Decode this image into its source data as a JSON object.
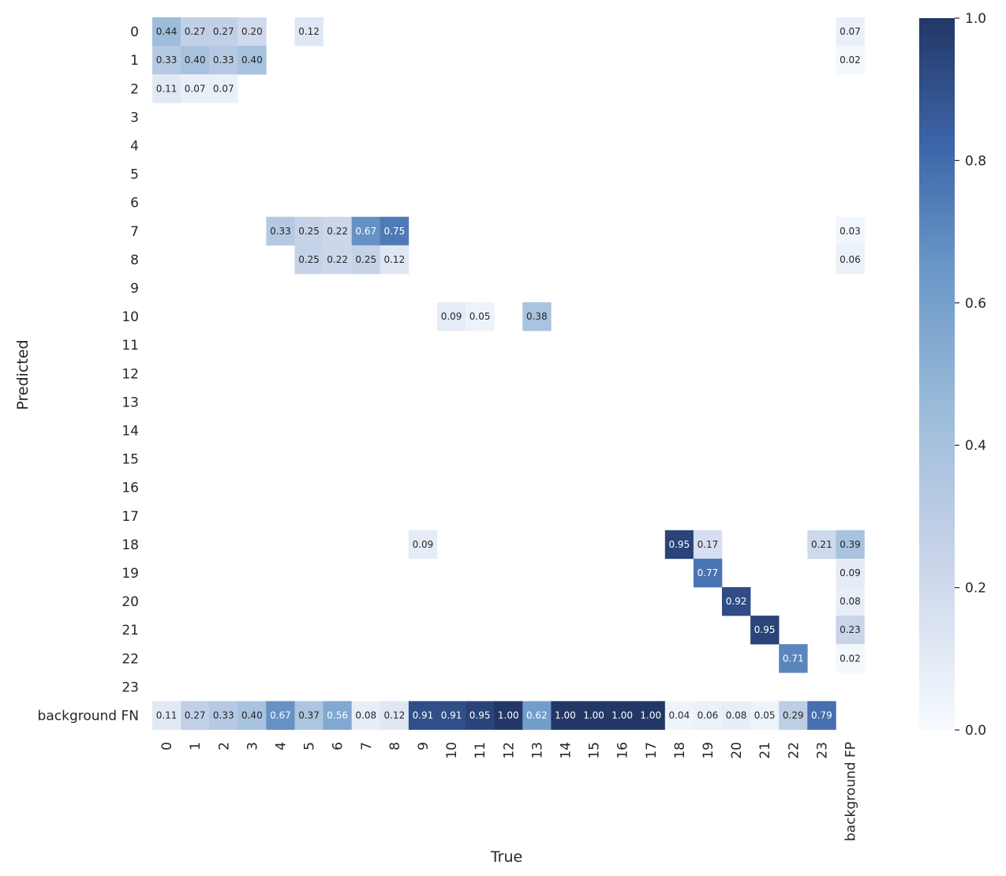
{
  "chart_data": {
    "type": "heatmap",
    "xlabel": "True",
    "ylabel": "Predicted",
    "x_categories": [
      "0",
      "1",
      "2",
      "3",
      "4",
      "5",
      "6",
      "7",
      "8",
      "9",
      "10",
      "11",
      "12",
      "13",
      "14",
      "15",
      "16",
      "17",
      "18",
      "19",
      "20",
      "21",
      "22",
      "23",
      "background FP"
    ],
    "y_categories": [
      "0",
      "1",
      "2",
      "3",
      "4",
      "5",
      "6",
      "7",
      "8",
      "9",
      "10",
      "11",
      "12",
      "13",
      "14",
      "15",
      "16",
      "17",
      "18",
      "19",
      "20",
      "21",
      "22",
      "23",
      "background FN"
    ],
    "values": [
      [
        0.44,
        0.27,
        0.27,
        0.2,
        null,
        0.12,
        null,
        null,
        null,
        null,
        null,
        null,
        null,
        null,
        null,
        null,
        null,
        null,
        null,
        null,
        null,
        null,
        null,
        null,
        0.07
      ],
      [
        0.33,
        0.4,
        0.33,
        0.4,
        null,
        null,
        null,
        null,
        null,
        null,
        null,
        null,
        null,
        null,
        null,
        null,
        null,
        null,
        null,
        null,
        null,
        null,
        null,
        null,
        0.02
      ],
      [
        0.11,
        0.07,
        0.07,
        null,
        null,
        null,
        null,
        null,
        null,
        null,
        null,
        null,
        null,
        null,
        null,
        null,
        null,
        null,
        null,
        null,
        null,
        null,
        null,
        null,
        null
      ],
      [
        null,
        null,
        null,
        null,
        null,
        null,
        null,
        null,
        null,
        null,
        null,
        null,
        null,
        null,
        null,
        null,
        null,
        null,
        null,
        null,
        null,
        null,
        null,
        null,
        null
      ],
      [
        null,
        null,
        null,
        null,
        null,
        null,
        null,
        null,
        null,
        null,
        null,
        null,
        null,
        null,
        null,
        null,
        null,
        null,
        null,
        null,
        null,
        null,
        null,
        null,
        null
      ],
      [
        null,
        null,
        null,
        null,
        null,
        null,
        null,
        null,
        null,
        null,
        null,
        null,
        null,
        null,
        null,
        null,
        null,
        null,
        null,
        null,
        null,
        null,
        null,
        null,
        null
      ],
      [
        null,
        null,
        null,
        null,
        null,
        null,
        null,
        null,
        null,
        null,
        null,
        null,
        null,
        null,
        null,
        null,
        null,
        null,
        null,
        null,
        null,
        null,
        null,
        null,
        null
      ],
      [
        null,
        null,
        null,
        null,
        0.33,
        0.25,
        0.22,
        0.67,
        0.75,
        null,
        null,
        null,
        null,
        null,
        null,
        null,
        null,
        null,
        null,
        null,
        null,
        null,
        null,
        null,
        0.03
      ],
      [
        null,
        null,
        null,
        null,
        null,
        0.25,
        0.22,
        0.25,
        0.12,
        null,
        null,
        null,
        null,
        null,
        null,
        null,
        null,
        null,
        null,
        null,
        null,
        null,
        null,
        null,
        0.06
      ],
      [
        null,
        null,
        null,
        null,
        null,
        null,
        null,
        null,
        null,
        null,
        null,
        null,
        null,
        null,
        null,
        null,
        null,
        null,
        null,
        null,
        null,
        null,
        null,
        null,
        null
      ],
      [
        null,
        null,
        null,
        null,
        null,
        null,
        null,
        null,
        null,
        null,
        0.09,
        0.05,
        null,
        0.38,
        null,
        null,
        null,
        null,
        null,
        null,
        null,
        null,
        null,
        null,
        null
      ],
      [
        null,
        null,
        null,
        null,
        null,
        null,
        null,
        null,
        null,
        null,
        null,
        null,
        null,
        null,
        null,
        null,
        null,
        null,
        null,
        null,
        null,
        null,
        null,
        null,
        null
      ],
      [
        null,
        null,
        null,
        null,
        null,
        null,
        null,
        null,
        null,
        null,
        null,
        null,
        null,
        null,
        null,
        null,
        null,
        null,
        null,
        null,
        null,
        null,
        null,
        null,
        null
      ],
      [
        null,
        null,
        null,
        null,
        null,
        null,
        null,
        null,
        null,
        null,
        null,
        null,
        null,
        null,
        null,
        null,
        null,
        null,
        null,
        null,
        null,
        null,
        null,
        null,
        null
      ],
      [
        null,
        null,
        null,
        null,
        null,
        null,
        null,
        null,
        null,
        null,
        null,
        null,
        null,
        null,
        null,
        null,
        null,
        null,
        null,
        null,
        null,
        null,
        null,
        null,
        null
      ],
      [
        null,
        null,
        null,
        null,
        null,
        null,
        null,
        null,
        null,
        null,
        null,
        null,
        null,
        null,
        null,
        null,
        null,
        null,
        null,
        null,
        null,
        null,
        null,
        null,
        null
      ],
      [
        null,
        null,
        null,
        null,
        null,
        null,
        null,
        null,
        null,
        null,
        null,
        null,
        null,
        null,
        null,
        null,
        null,
        null,
        null,
        null,
        null,
        null,
        null,
        null,
        null
      ],
      [
        null,
        null,
        null,
        null,
        null,
        null,
        null,
        null,
        null,
        null,
        null,
        null,
        null,
        null,
        null,
        null,
        null,
        null,
        null,
        null,
        null,
        null,
        null,
        null,
        null
      ],
      [
        null,
        null,
        null,
        null,
        null,
        null,
        null,
        null,
        null,
        0.09,
        null,
        null,
        null,
        null,
        null,
        null,
        null,
        null,
        0.95,
        0.17,
        null,
        null,
        null,
        0.21,
        0.39
      ],
      [
        null,
        null,
        null,
        null,
        null,
        null,
        null,
        null,
        null,
        null,
        null,
        null,
        null,
        null,
        null,
        null,
        null,
        null,
        null,
        0.77,
        null,
        null,
        null,
        null,
        0.09
      ],
      [
        null,
        null,
        null,
        null,
        null,
        null,
        null,
        null,
        null,
        null,
        null,
        null,
        null,
        null,
        null,
        null,
        null,
        null,
        null,
        null,
        0.92,
        null,
        null,
        null,
        0.08
      ],
      [
        null,
        null,
        null,
        null,
        null,
        null,
        null,
        null,
        null,
        null,
        null,
        null,
        null,
        null,
        null,
        null,
        null,
        null,
        null,
        null,
        null,
        0.95,
        null,
        null,
        0.23
      ],
      [
        null,
        null,
        null,
        null,
        null,
        null,
        null,
        null,
        null,
        null,
        null,
        null,
        null,
        null,
        null,
        null,
        null,
        null,
        null,
        null,
        null,
        null,
        0.71,
        null,
        0.02
      ],
      [
        null,
        null,
        null,
        null,
        null,
        null,
        null,
        null,
        null,
        null,
        null,
        null,
        null,
        null,
        null,
        null,
        null,
        null,
        null,
        null,
        null,
        null,
        null,
        null,
        null
      ],
      [
        0.11,
        0.27,
        0.33,
        0.4,
        0.67,
        0.37,
        0.56,
        0.08,
        0.12,
        0.91,
        0.91,
        0.95,
        1.0,
        0.62,
        1.0,
        1.0,
        1.0,
        1.0,
        0.04,
        0.06,
        0.08,
        0.05,
        0.29,
        0.79,
        null
      ]
    ],
    "colorbar": {
      "range": [
        0,
        1
      ],
      "ticks": [
        "0.0",
        "0.2",
        "0.4",
        "0.6",
        "0.8",
        "1.0"
      ],
      "colors": [
        "#f7fbff",
        "#c6d2e8",
        "#9bbcda",
        "#6a97c8",
        "#3d66a9",
        "#233766"
      ]
    }
  }
}
